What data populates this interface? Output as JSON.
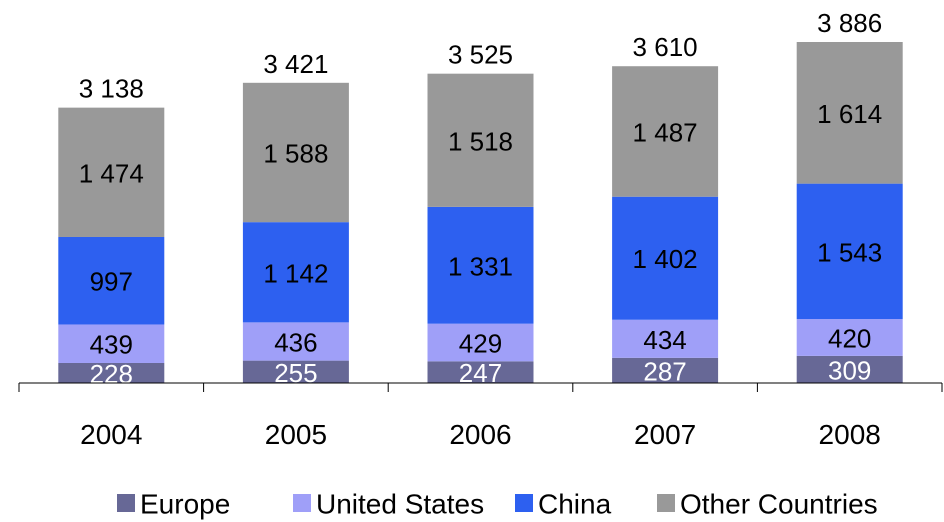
{
  "chart_data": {
    "type": "bar",
    "stacked": true,
    "categories": [
      "2004",
      "2005",
      "2006",
      "2007",
      "2008"
    ],
    "totals": [
      "3 138",
      "3 421",
      "3 525",
      "3 610",
      "3 886"
    ],
    "series": [
      {
        "name": "Europe",
        "color": "#676896",
        "label_color": "#ffffff",
        "values": [
          228,
          255,
          247,
          287,
          309
        ],
        "labels": [
          "228",
          "255",
          "247",
          "287",
          "309"
        ]
      },
      {
        "name": "United States",
        "color": "#9f9ff8",
        "label_color": "#000000",
        "values": [
          439,
          436,
          429,
          434,
          420
        ],
        "labels": [
          "439",
          "436",
          "429",
          "434",
          "420"
        ]
      },
      {
        "name": "China",
        "color": "#2d60f0",
        "label_color": "#000000",
        "values": [
          997,
          1142,
          1331,
          1402,
          1543
        ],
        "labels": [
          "997",
          "1 142",
          "1 331",
          "1 402",
          "1 543"
        ]
      },
      {
        "name": "Other Countries",
        "color": "#999999",
        "label_color": "#000000",
        "values": [
          1474,
          1588,
          1518,
          1487,
          1614
        ],
        "labels": [
          "1 474",
          "1 588",
          "1 518",
          "1 487",
          "1 614"
        ]
      }
    ],
    "ylim": [
      0,
      3886
    ],
    "grid": false,
    "legend_position": "bottom",
    "title": "",
    "xlabel": "",
    "ylabel": ""
  }
}
